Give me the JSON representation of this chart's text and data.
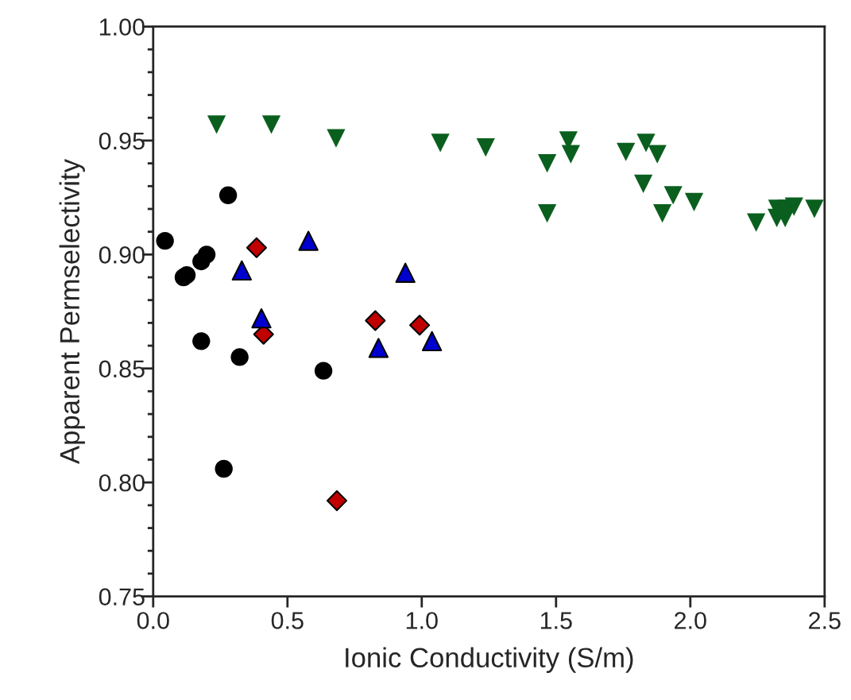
{
  "chart_data": {
    "type": "scatter",
    "xlabel": "Ionic Conductivity (S/m)",
    "ylabel": "Apparent Permselectivity",
    "xlim": [
      0,
      2.5
    ],
    "ylim": [
      0.75,
      1.0
    ],
    "xticks": [
      {
        "value": 0,
        "label": "0.0"
      },
      {
        "value": 0.5,
        "label": "0.5"
      },
      {
        "value": 1.0,
        "label": "1.0"
      },
      {
        "value": 1.5,
        "label": "1.5"
      },
      {
        "value": 2.0,
        "label": "2.0"
      },
      {
        "value": 2.5,
        "label": "2.5"
      }
    ],
    "yticks": [
      {
        "value": 0.75,
        "label": "0.75"
      },
      {
        "value": 0.76,
        "label": null
      },
      {
        "value": 0.77,
        "label": null
      },
      {
        "value": 0.78,
        "label": null
      },
      {
        "value": 0.79,
        "label": null
      },
      {
        "value": 0.8,
        "label": "0.80"
      },
      {
        "value": 0.81,
        "label": null
      },
      {
        "value": 0.82,
        "label": null
      },
      {
        "value": 0.83,
        "label": null
      },
      {
        "value": 0.84,
        "label": null
      },
      {
        "value": 0.85,
        "label": "0.85"
      },
      {
        "value": 0.86,
        "label": null
      },
      {
        "value": 0.87,
        "label": null
      },
      {
        "value": 0.88,
        "label": null
      },
      {
        "value": 0.89,
        "label": null
      },
      {
        "value": 0.9,
        "label": "0.90"
      },
      {
        "value": 0.91,
        "label": null
      },
      {
        "value": 0.92,
        "label": null
      },
      {
        "value": 0.93,
        "label": null
      },
      {
        "value": 0.94,
        "label": null
      },
      {
        "value": 0.95,
        "label": "0.95"
      },
      {
        "value": 0.96,
        "label": null
      },
      {
        "value": 0.97,
        "label": null
      },
      {
        "value": 0.98,
        "label": null
      },
      {
        "value": 0.99,
        "label": null
      },
      {
        "value": 1.0,
        "label": "1.00"
      }
    ],
    "grid": false,
    "legend": false,
    "series": [
      {
        "color": "#000000",
        "marker": "circle",
        "x": [
          0.044,
          0.113,
          0.125,
          0.179,
          0.199,
          0.279,
          0.179,
          0.322,
          0.634,
          0.263
        ],
        "values": [
          0.906,
          0.89,
          0.891,
          0.897,
          0.9,
          0.926,
          0.862,
          0.855,
          0.849,
          0.806
        ]
      },
      {
        "color": "#c00000",
        "marker": "diamond",
        "x": [
          0.385,
          0.411,
          0.827,
          0.992,
          0.684
        ],
        "values": [
          0.903,
          0.865,
          0.871,
          0.869,
          0.792
        ]
      },
      {
        "color": "#0000d0",
        "marker": "triangle",
        "x": [
          0.33,
          0.578,
          0.403,
          0.939,
          0.839,
          1.038
        ],
        "values": [
          0.893,
          0.906,
          0.872,
          0.892,
          0.859,
          0.862
        ]
      },
      {
        "color": "#0a5f1e",
        "marker": "triangle_down",
        "x": [
          0.236,
          0.44,
          0.681,
          1.069,
          1.238,
          1.467,
          1.546,
          1.555,
          1.467,
          1.76,
          1.835,
          1.877,
          1.825,
          1.936,
          1.896,
          2.014,
          2.245,
          2.322,
          2.324,
          2.353,
          2.359,
          2.386,
          2.462
        ],
        "values": [
          0.957,
          0.957,
          0.951,
          0.949,
          0.947,
          0.94,
          0.95,
          0.944,
          0.918,
          0.945,
          0.949,
          0.944,
          0.931,
          0.926,
          0.918,
          0.923,
          0.914,
          0.916,
          0.92,
          0.916,
          0.92,
          0.921,
          0.92
        ]
      }
    ]
  }
}
